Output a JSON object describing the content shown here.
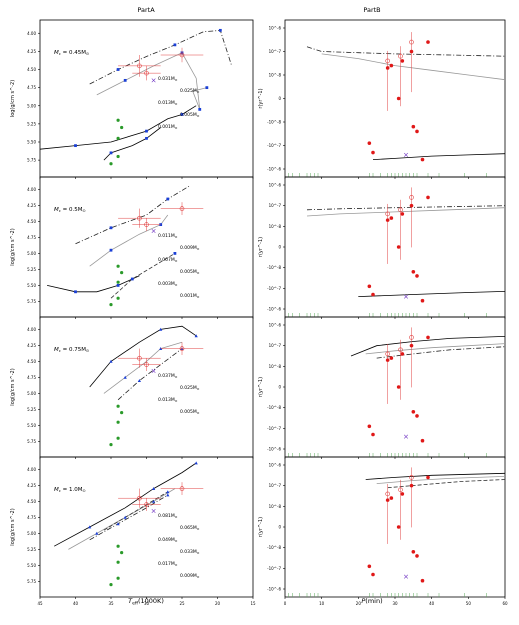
{
  "chart_data": {
    "type": "line",
    "column_titles": [
      "PartA",
      "PartB"
    ],
    "left": {
      "xlabel": "T_eff(1000K)",
      "ylabel": "log(g/cm s^-2)",
      "xlim": [
        45,
        15
      ],
      "ylim": [
        5.9,
        3.9
      ],
      "xticks": [
        "45",
        "40",
        "35",
        "30",
        "25",
        "20",
        "15"
      ],
      "yticks": [
        "4.00",
        "4.25",
        "4.50",
        "4.75",
        "5.00",
        "5.25",
        "5.50",
        "5.75"
      ],
      "panels": [
        {
          "core_mass": "0.45",
          "label_prefix": "M",
          "label_sub": "c",
          "label_suffix": " = 0.45M",
          "track_labels": [
            "0.031M",
            "0.025M",
            "0.013M",
            "0.005M",
            "0.001M"
          ],
          "tracks": [
            {
              "style": "dashdot",
              "x": [
                38,
                34,
                30,
                26,
                22,
                19.6,
                18
              ],
              "y": [
                4.7,
                4.5,
                4.32,
                4.16,
                3.98,
                3.96,
                4.45
              ]
            },
            {
              "style": "gray",
              "x": [
                37,
                33,
                29,
                25,
                23,
                22.5,
                23.5,
                21.5
              ],
              "y": [
                4.85,
                4.65,
                4.45,
                4.27,
                4.62,
                5.05,
                4.8,
                4.75
              ]
            },
            {
              "style": "solid",
              "x": [
                45,
                40,
                35,
                30,
                27,
                25,
                23
              ],
              "y": [
                5.6,
                5.55,
                5.5,
                5.35,
                5.18,
                5.12,
                5.0
              ]
            },
            {
              "style": "solid",
              "x": [
                36,
                35,
                32,
                30,
                28
              ],
              "y": [
                5.75,
                5.65,
                5.55,
                5.45,
                5.3
              ]
            }
          ]
        },
        {
          "core_mass": "0.5",
          "label_prefix": "M",
          "label_sub": "c",
          "label_suffix": " = 0.5M",
          "track_labels": [
            "0.011M",
            "0.009M",
            "0.007M",
            "0.005M",
            "0.003M",
            "0.001M"
          ],
          "tracks": [
            {
              "style": "dashdot",
              "x": [
                40,
                35,
                30,
                27,
                24
              ],
              "y": [
                4.85,
                4.6,
                4.4,
                4.15,
                3.95
              ]
            },
            {
              "style": "gray",
              "x": [
                38,
                35,
                31,
                28,
                27
              ],
              "y": [
                5.2,
                4.95,
                4.7,
                4.55,
                4.4
              ]
            },
            {
              "style": "solid",
              "x": [
                44,
                40,
                37,
                34,
                31
              ],
              "y": [
                5.5,
                5.6,
                5.6,
                5.5,
                5.35
              ]
            },
            {
              "style": "dashed",
              "x": [
                35,
                32,
                29,
                26
              ],
              "y": [
                5.7,
                5.4,
                5.2,
                5.0
              ]
            }
          ]
        },
        {
          "core_mass": "0.75",
          "label_prefix": "M",
          "label_sub": "c",
          "label_suffix": " = 0.75M",
          "track_labels": [
            "0.037M",
            "0.025M",
            "0.013M",
            "0.005M"
          ],
          "tracks": [
            {
              "style": "solid",
              "x": [
                38,
                35,
                31,
                28,
                25,
                23
              ],
              "y": [
                4.9,
                4.5,
                4.2,
                4.0,
                3.95,
                4.1
              ]
            },
            {
              "style": "gray",
              "x": [
                36,
                33,
                30,
                28,
                25
              ],
              "y": [
                5.0,
                4.75,
                4.5,
                4.3,
                4.2
              ]
            },
            {
              "style": "dashdot",
              "x": [
                34,
                31,
                28,
                25
              ],
              "y": [
                5.1,
                4.8,
                4.55,
                4.3
              ]
            }
          ]
        },
        {
          "core_mass": "1.0",
          "label_prefix": "M",
          "label_sub": "c",
          "label_suffix": " = 1.0M",
          "track_labels": [
            "0.081M",
            "0.065M",
            "0.049M",
            "0.033M",
            "0.017M",
            "0.009M"
          ],
          "tracks": [
            {
              "style": "solid",
              "x": [
                43,
                38,
                33,
                29,
                25,
                23
              ],
              "y": [
                5.2,
                4.9,
                4.6,
                4.3,
                4.05,
                3.9
              ]
            },
            {
              "style": "gray",
              "x": [
                41,
                37,
                33,
                29,
                26
              ],
              "y": [
                5.25,
                5.0,
                4.75,
                4.5,
                4.3
              ]
            },
            {
              "style": "dashdot",
              "x": [
                38,
                34,
                30,
                27
              ],
              "y": [
                5.1,
                4.85,
                4.6,
                4.4
              ]
            },
            {
              "style": "dashed",
              "x": [
                36,
                33,
                30,
                27
              ],
              "y": [
                4.95,
                4.75,
                4.55,
                4.35
              ]
            }
          ]
        }
      ],
      "observed_open": [
        {
          "x": 31,
          "y": 4.45,
          "xerr": 3,
          "yerr": 0.15
        },
        {
          "x": 30,
          "y": 4.55,
          "xerr": 2,
          "yerr": 0.1
        },
        {
          "x": 25,
          "y": 4.3,
          "xerr": 3,
          "yerr": 0.1
        }
      ],
      "observed_cross": [
        {
          "x": 29,
          "y": 4.65
        }
      ],
      "green_points": [
        {
          "x": 34,
          "y": 5.2
        },
        {
          "x": 33.5,
          "y": 5.3
        },
        {
          "x": 34,
          "y": 5.45
        },
        {
          "x": 34,
          "y": 5.7
        },
        {
          "x": 35,
          "y": 5.8
        }
      ]
    },
    "right": {
      "xlabel": "P(min)",
      "ylabel": "r(yr^-1)",
      "xlim": [
        0,
        60
      ],
      "xticks": [
        "0",
        "10",
        "20",
        "30",
        "40",
        "50",
        "60"
      ],
      "yticks": [
        "10^-6",
        "10^-7",
        "10^-8",
        "0",
        "-10^-8",
        "-10^-7",
        "-10^-6"
      ],
      "open_points": [
        {
          "x": 28,
          "y": 1.6
        },
        {
          "x": 31.5,
          "y": 1.8
        },
        {
          "x": 34.5,
          "y": 2.4
        }
      ],
      "filled_points": [
        {
          "x": 23,
          "y": -1.9
        },
        {
          "x": 24,
          "y": -2.3
        },
        {
          "x": 28,
          "y": 1.3
        },
        {
          "x": 29,
          "y": 1.4
        },
        {
          "x": 31,
          "y": 0.0
        },
        {
          "x": 32,
          "y": 1.6
        },
        {
          "x": 34.5,
          "y": 2.0
        },
        {
          "x": 35,
          "y": -1.2
        },
        {
          "x": 36,
          "y": -1.4
        },
        {
          "x": 37.5,
          "y": -2.6
        },
        {
          "x": 39,
          "y": 2.4
        }
      ],
      "cross_points": [
        {
          "x": 33,
          "y": -2.4
        }
      ],
      "panels": [
        {
          "curves": [
            {
              "style": "dashdot",
              "x": [
                6,
                10,
                20,
                30,
                45,
                60
              ],
              "y": [
                2.2,
                2.0,
                1.95,
                1.9,
                1.85,
                1.8
              ]
            },
            {
              "style": "gray",
              "x": [
                10,
                20,
                30,
                40,
                50,
                60
              ],
              "y": [
                1.9,
                1.7,
                1.4,
                1.2,
                1.0,
                0.8
              ]
            },
            {
              "style": "solid",
              "x": [
                24,
                30,
                40,
                50,
                60
              ],
              "y": [
                -2.6,
                -2.55,
                -2.45,
                -2.4,
                -2.35
              ]
            }
          ]
        },
        {
          "curves": [
            {
              "style": "dashdot",
              "x": [
                6,
                15,
                30,
                45,
                60
              ],
              "y": [
                1.8,
                1.85,
                1.9,
                1.95,
                2.0
              ]
            },
            {
              "style": "gray",
              "x": [
                6,
                15,
                30,
                45,
                60
              ],
              "y": [
                1.5,
                1.6,
                1.7,
                1.8,
                1.9
              ]
            },
            {
              "style": "solid",
              "x": [
                20,
                35,
                50,
                60
              ],
              "y": [
                -2.4,
                -2.3,
                -2.2,
                -2.15
              ]
            }
          ]
        },
        {
          "curves": [
            {
              "style": "solid",
              "x": [
                18,
                25,
                35,
                45,
                60
              ],
              "y": [
                1.5,
                2.0,
                2.2,
                2.35,
                2.45
              ]
            },
            {
              "style": "gray",
              "x": [
                22,
                30,
                40,
                50,
                60
              ],
              "y": [
                1.6,
                1.75,
                1.9,
                2.0,
                2.1
              ]
            },
            {
              "style": "dashdot",
              "x": [
                25,
                35,
                45,
                60
              ],
              "y": [
                1.4,
                1.6,
                1.8,
                1.95
              ]
            }
          ]
        },
        {
          "curves": [
            {
              "style": "solid",
              "x": [
                22,
                30,
                40,
                50,
                60
              ],
              "y": [
                2.3,
                2.4,
                2.5,
                2.55,
                2.6
              ]
            },
            {
              "style": "gray",
              "x": [
                25,
                35,
                45,
                60
              ],
              "y": [
                2.1,
                2.25,
                2.35,
                2.45
              ]
            },
            {
              "style": "dashed",
              "x": [
                28,
                38,
                48,
                60
              ],
              "y": [
                1.9,
                2.05,
                2.2,
                2.3
              ]
            }
          ]
        }
      ],
      "rug_x": [
        1,
        2,
        4,
        6,
        7,
        8,
        9,
        23,
        24,
        26,
        28,
        29,
        30,
        31,
        32,
        33,
        34,
        35,
        36,
        39,
        42,
        49,
        55
      ]
    }
  }
}
